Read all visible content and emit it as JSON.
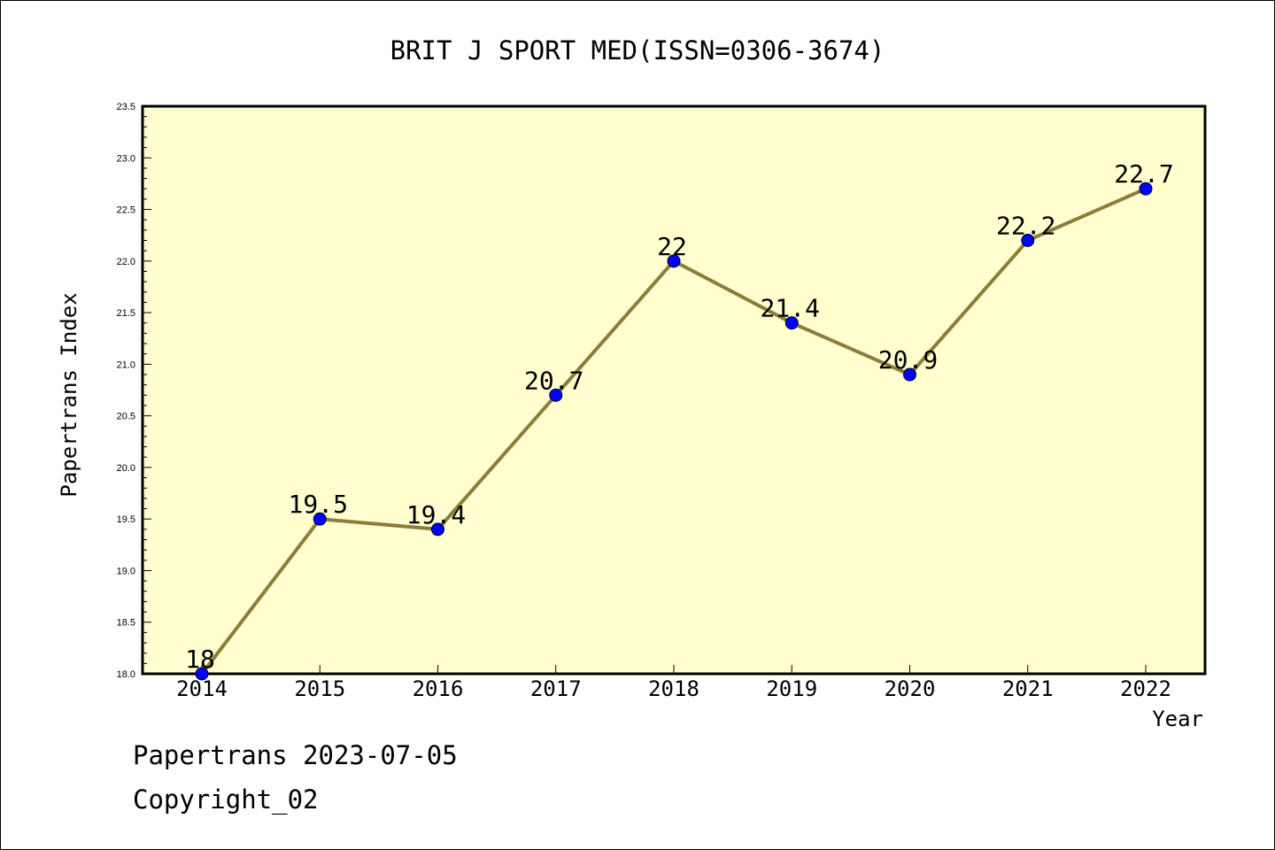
{
  "chart_data": {
    "type": "line",
    "title": "BRIT J SPORT MED(ISSN=0306-3674)",
    "xlabel": "Year",
    "ylabel": "Papertrans Index",
    "categories": [
      "2014",
      "2015",
      "2016",
      "2017",
      "2018",
      "2019",
      "2020",
      "2021",
      "2022"
    ],
    "series": [
      {
        "values": [
          18,
          19.5,
          19.4,
          20.7,
          22,
          21.4,
          20.9,
          22.2,
          22.7
        ],
        "labels": [
          "18",
          "19.5",
          "19.4",
          "20.7",
          "22",
          "21.4",
          "20.9",
          "22.2",
          "22.7"
        ]
      }
    ],
    "ylim": [
      18.0,
      23.5
    ],
    "yticks": [
      "18.0",
      "18.5",
      "19.0",
      "19.5",
      "20.0",
      "20.5",
      "21.0",
      "21.5",
      "22.0",
      "22.5",
      "23.0",
      "23.5"
    ],
    "grid": false,
    "colors": {
      "plot_bg": "#ffffd0",
      "line": "#8b7d3a",
      "marker": "#0000ff"
    }
  },
  "footer": {
    "line1": "Papertrans 2023-07-05",
    "line2": "Copyright_02"
  }
}
